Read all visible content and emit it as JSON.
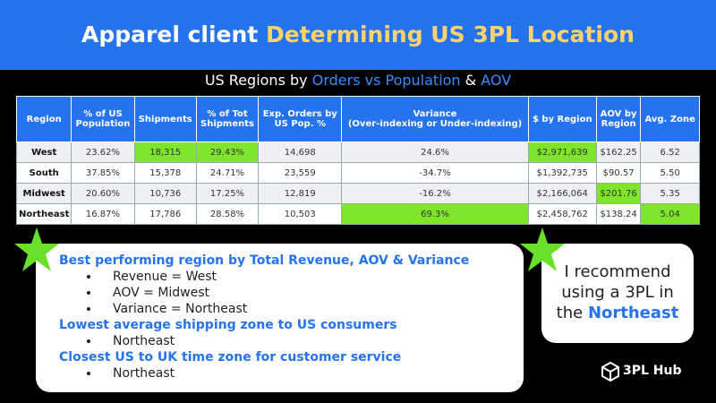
{
  "header": {
    "title": [
      "Apparel client",
      "Determining US 3PL Location"
    ]
  },
  "subtitle": [
    "US Regions by",
    "Orders vs Population",
    "&",
    "AOV"
  ],
  "table": {
    "columns": [
      [
        "Region"
      ],
      [
        "% of US",
        "Population"
      ],
      [
        "Shipments"
      ],
      [
        "% of Tot",
        "Shipments"
      ],
      [
        "Exp. Orders by",
        "US Pop. %"
      ],
      [
        "Variance",
        "(Over-indexing or Under-indexing)"
      ],
      [
        "$ by Region"
      ],
      [
        "AOV by",
        "Region"
      ],
      [
        "Avg. Zone"
      ]
    ],
    "rows": [
      [
        "West",
        "23.62%",
        "18,315",
        "29.43%",
        "14,698",
        "24.6%",
        "$2,971,639",
        "$162.25",
        "6.52"
      ],
      [
        "South",
        "37.85%",
        "15,378",
        "24.71%",
        "23,559",
        "-34.7%",
        "$1,392,735",
        "$90.57",
        "5.50"
      ],
      [
        "Midwest",
        "20.60%",
        "10,736",
        "17.25%",
        "12,819",
        "-16.2%",
        "$2,166,064",
        "$201.76",
        "5.35"
      ],
      [
        "Northeast",
        "16.87%",
        "17,786",
        "28.58%",
        "10,503",
        "69.3%",
        "$2,458,762",
        "$138.24",
        "5.04"
      ]
    ],
    "highlight_color": "#7ee52a",
    "highlighted": [
      [
        0,
        2
      ],
      [
        0,
        3
      ],
      [
        0,
        6
      ],
      [
        2,
        7
      ],
      [
        3,
        5
      ],
      [
        3,
        8
      ]
    ]
  },
  "findings": [
    {
      "heading": "Best performing region by Total Revenue, AOV & Variance",
      "bullets": [
        "Revenue = West",
        "AOV = Midwest",
        "Variance = Northeast"
      ]
    },
    {
      "heading": "Lowest average shipping zone to US consumers",
      "bullets": [
        "Northeast"
      ]
    },
    {
      "heading": "Closest US to UK time zone for customer service",
      "bullets": [
        "Northeast"
      ]
    }
  ],
  "recommendation": [
    "I recommend using a 3PL in",
    "the",
    "Northeast"
  ],
  "logo": "3PL Hub"
}
